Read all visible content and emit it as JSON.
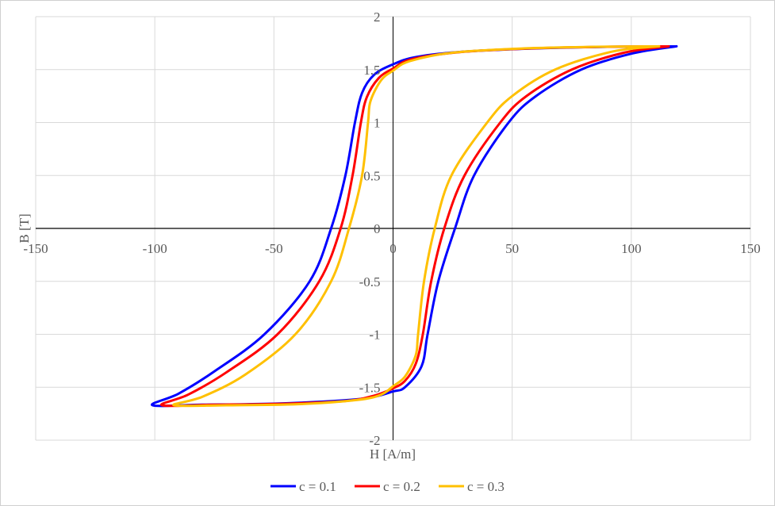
{
  "chart_data": {
    "type": "line",
    "title": "",
    "xlabel": "H [A/m]",
    "ylabel": "B [T]",
    "xlim": [
      -150,
      150
    ],
    "ylim": [
      -2,
      2
    ],
    "xticks": [
      -150,
      -100,
      -50,
      0,
      50,
      100,
      150
    ],
    "yticks": [
      -2,
      -1.5,
      -1,
      -0.5,
      0,
      0.5,
      1,
      1.5,
      2
    ],
    "grid": true,
    "legend_position": "bottom",
    "series": [
      {
        "name": "c = 0.1",
        "color": "#0000ff",
        "points": [
          [
            119,
            1.72
          ],
          [
            90,
            1.715
          ],
          [
            60,
            1.7
          ],
          [
            30,
            1.67
          ],
          [
            10,
            1.62
          ],
          [
            0,
            1.55
          ],
          [
            -8,
            1.45
          ],
          [
            -13,
            1.28
          ],
          [
            -16,
            1.0
          ],
          [
            -20,
            0.5
          ],
          [
            -26,
            0
          ],
          [
            -35,
            -0.5
          ],
          [
            -54,
            -1.0
          ],
          [
            -75,
            -1.35
          ],
          [
            -90,
            -1.56
          ],
          [
            -101,
            -1.67
          ],
          [
            -80,
            -1.665
          ],
          [
            -50,
            -1.655
          ],
          [
            -25,
            -1.63
          ],
          [
            -10,
            -1.6
          ],
          [
            0,
            -1.54
          ],
          [
            5,
            -1.5
          ],
          [
            12,
            -1.3
          ],
          [
            14.5,
            -1.0
          ],
          [
            19,
            -0.5
          ],
          [
            26,
            0
          ],
          [
            34,
            0.5
          ],
          [
            48.5,
            1.0
          ],
          [
            60,
            1.25
          ],
          [
            79,
            1.5
          ],
          [
            100,
            1.65
          ],
          [
            119,
            1.72
          ]
        ]
      },
      {
        "name": "c = 0.2",
        "color": "#ff0000",
        "points": [
          [
            115.7,
            1.72
          ],
          [
            88,
            1.715
          ],
          [
            58,
            1.7
          ],
          [
            28,
            1.665
          ],
          [
            8,
            1.6
          ],
          [
            0,
            1.51
          ],
          [
            -6,
            1.42
          ],
          [
            -11,
            1.24
          ],
          [
            -13.5,
            1.0
          ],
          [
            -17,
            0.5
          ],
          [
            -22,
            0
          ],
          [
            -31,
            -0.5
          ],
          [
            -48.5,
            -1.0
          ],
          [
            -70,
            -1.36
          ],
          [
            -86,
            -1.57
          ],
          [
            -97,
            -1.67
          ],
          [
            -75,
            -1.665
          ],
          [
            -45,
            -1.655
          ],
          [
            -20,
            -1.63
          ],
          [
            -8,
            -1.58
          ],
          [
            0,
            -1.51
          ],
          [
            5,
            -1.44
          ],
          [
            9.5,
            -1.28
          ],
          [
            12.5,
            -1.0
          ],
          [
            16,
            -0.5
          ],
          [
            21.5,
            0
          ],
          [
            30,
            0.5
          ],
          [
            45,
            1.0
          ],
          [
            56,
            1.25
          ],
          [
            75,
            1.5
          ],
          [
            97,
            1.66
          ],
          [
            115.7,
            1.72
          ]
        ]
      },
      {
        "name": "c = 0.3",
        "color": "#ffc000",
        "points": [
          [
            111.7,
            1.72
          ],
          [
            85,
            1.715
          ],
          [
            55,
            1.7
          ],
          [
            25,
            1.66
          ],
          [
            7,
            1.58
          ],
          [
            0,
            1.49
          ],
          [
            -5,
            1.4
          ],
          [
            -9.5,
            1.2
          ],
          [
            -10.5,
            1.0
          ],
          [
            -13,
            0.5
          ],
          [
            -18.5,
            0
          ],
          [
            -26,
            -0.5
          ],
          [
            -41,
            -1.0
          ],
          [
            -62,
            -1.38
          ],
          [
            -80,
            -1.59
          ],
          [
            -92,
            -1.67
          ],
          [
            -70,
            -1.67
          ],
          [
            -40,
            -1.66
          ],
          [
            -15,
            -1.62
          ],
          [
            -5,
            -1.57
          ],
          [
            0,
            -1.49
          ],
          [
            5,
            -1.4
          ],
          [
            9.5,
            -1.2
          ],
          [
            10.5,
            -1.0
          ],
          [
            13,
            -0.5
          ],
          [
            17.5,
            0
          ],
          [
            24.5,
            0.5
          ],
          [
            39.5,
            1.0
          ],
          [
            50,
            1.25
          ],
          [
            68,
            1.5
          ],
          [
            92,
            1.67
          ],
          [
            111.7,
            1.72
          ]
        ]
      }
    ]
  }
}
